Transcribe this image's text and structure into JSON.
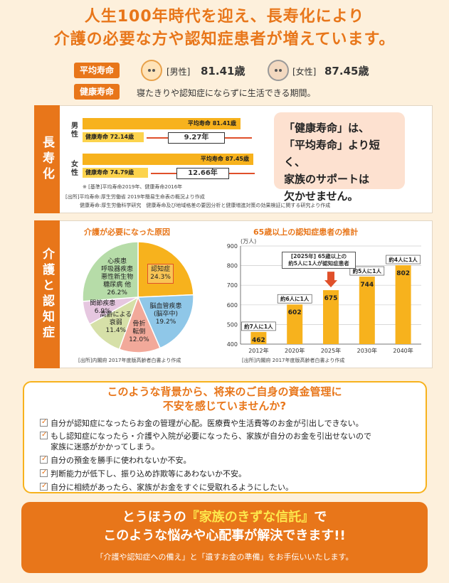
{
  "headline": {
    "line1": "人生100年時代を迎え、長寿化により",
    "line2": "介護の必要な方や認知症患者が増えています。"
  },
  "life": {
    "avg_label": "平均寿命",
    "male_label": "[男性]",
    "male_value": "81.41歳",
    "female_label": "[女性]",
    "female_value": "87.45歳",
    "healthy_label": "健康寿命",
    "healthy_desc": "寝たきりや認知症にならずに生活できる期間。"
  },
  "longevity": {
    "side_label": "長寿化",
    "male_sex": "男性",
    "female_sex": "女性",
    "male_avg": "平均寿命 81.41歳",
    "male_healthy": "健康寿命 72.14歳",
    "male_gap": "9.27年",
    "female_avg": "平均寿命 87.45歳",
    "female_healthy": "健康寿命 74.79歳",
    "female_gap": "12.66年",
    "base_note": "※ [基準]平均寿命2019年、健康寿命2016年",
    "source1": "[出所]平均寿命:厚生労働省 2019年簡易生命表の概況より作成",
    "source2": "健康寿命:厚生労働科学研究　健康寿命及び地域格差の要因分析と健康増進対策の効果検証に関する研究より作成",
    "quote": [
      "「健康寿命」は、",
      "「平均寿命」より短く、",
      "家族のサポートは",
      "欠かせません。"
    ]
  },
  "care": {
    "side_label": "介護と認知症",
    "pie_title": "介護が必要になった原因",
    "pie_source": "[出所]内閣府 2017年度版高齢者白書より作成",
    "bar_title": "65歳以上の認知症患者の推計",
    "bar_source": "[出所]内閣府 2017年度版高齢者白書より作成",
    "bar_unit": "(万人)",
    "callout": [
      "[2025年] 65歳以上の",
      "約5人に1人が認知症患者"
    ]
  },
  "chart_data": [
    {
      "type": "pie",
      "title": "介護が必要になった原因",
      "slices": [
        {
          "label": "認知症",
          "value": 24.3,
          "color": "#f7b21d"
        },
        {
          "label": "脳血管疾患(脳卒中)",
          "value": 19.2,
          "color": "#8fc7e8"
        },
        {
          "label": "骨折転倒",
          "value": 12.0,
          "color": "#f2a99a"
        },
        {
          "label": "高齢による衰弱",
          "value": 11.4,
          "color": "#d6e0a8"
        },
        {
          "label": "関節疾患",
          "value": 6.9,
          "color": "#e6c7e0"
        },
        {
          "label": "心疾患 呼吸器疾患 悪性新生物 糖尿病 他",
          "value": 26.2,
          "color": "#b6dca8"
        }
      ],
      "labels": [
        {
          "lines": [
            "認知症",
            "24.3%"
          ]
        },
        {
          "lines": [
            "脳血管疾患",
            "(脳卒中)",
            "19.2%"
          ]
        },
        {
          "lines": [
            "骨折",
            "転倒",
            "12.0%"
          ]
        },
        {
          "lines": [
            "高齢による",
            "衰弱",
            "11.4%"
          ]
        },
        {
          "lines": [
            "関節疾患",
            "6.9%"
          ]
        },
        {
          "lines": [
            "心疾患",
            "呼吸器疾患",
            "悪性新生物",
            "糖尿病 他",
            "26.2%"
          ]
        }
      ]
    },
    {
      "type": "bar",
      "title": "65歳以上の認知症患者の推計",
      "ylabel": "(万人)",
      "categories": [
        "2012年",
        "2020年",
        "2025年",
        "2030年",
        "2040年"
      ],
      "values": [
        462,
        602,
        675,
        744,
        802
      ],
      "annotations": [
        "約7人に1人",
        "約6人に1人",
        "",
        "約5人に1人",
        "約4人に1人"
      ],
      "yticks": [
        400,
        500,
        600,
        700,
        800,
        900
      ],
      "ylim": [
        400,
        900
      ],
      "color": "#f7b21d"
    }
  ],
  "concern": {
    "title1": "このような背景から、将来のご自身の資金管理に",
    "title2": "不安を感じていませんか?",
    "items": [
      "自分が認知症になったらお金の管理が心配。医療費や生活費等のお金が引出しできない。",
      "もし認知症になったら・介護や入院が必要になったら、家族が自分のお金を引出せないので",
      "家族に迷惑がかかってしまう。",
      "自分の預金を勝手に使われないか不安。",
      "判断能力が低下し、振り込め詐欺等にあわないか不安。",
      "自分に相続があったら、家族がお金をすぐに受取れるようにしたい。"
    ]
  },
  "banner": {
    "pre": "とうほうの",
    "highlight": "『家族のきずな信託』",
    "post": "で",
    "line2": "このような悩みや心配事が解決できます!!",
    "line3": "「介護や認知症への備え」と「遺すお金の準備」をお手伝いいたします。"
  }
}
